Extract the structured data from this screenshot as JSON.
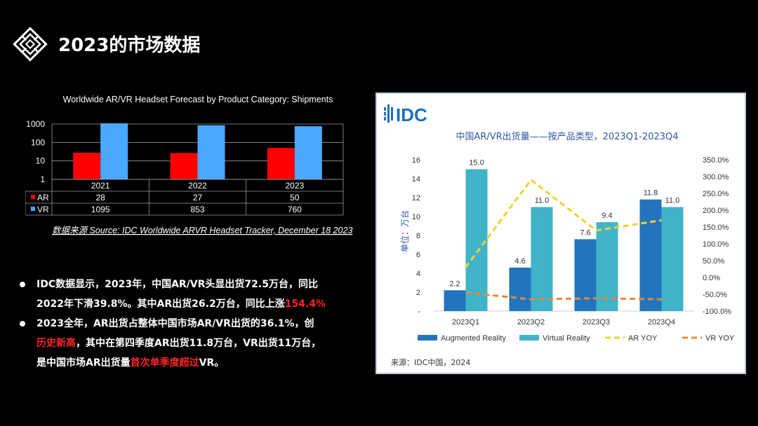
{
  "header": {
    "title": "2023的市场数据"
  },
  "left_chart": {
    "title": "Worldwide AR/VR Headset Forecast by Product Category: Shipments",
    "source": "数据来源 Source: IDC Worldwide ARVR Headset Tracker, December 18 2023"
  },
  "right_chart": {
    "brand": "IDC",
    "title": "中国AR/VR出货量——按产品类型，2023Q1-2023Q4",
    "ylabel": "单位：万台",
    "source": "来源：IDC中国，2024"
  },
  "bullets": {
    "b1_l1": "IDC数据显示，2023年，中国AR/VR头显出货72.5万台，同比",
    "b1_l2": "2022年下滑39.8%。其中AR出货26.2万台，同比上涨",
    "b1_l2_red": "154.4%",
    "b2_l1": "2023全年，AR出货占整体中国市场AR/VR出货的36.1%，创",
    "b2_l2_red": "历史新高",
    "b2_l2": "，其中在第四季度AR出货11.8万台，VR出货11万台，",
    "b2_l3": "是中国市场AR出货量",
    "b2_l3_red": "首次单季度超过",
    "b2_l3_end": "VR。"
  },
  "colors": {
    "background": "#000000",
    "left_ar": "#ff0000",
    "left_vr": "#4aa8ff",
    "ar_bar": "#2275bd",
    "vr_bar": "#3fb4c8",
    "ar_yoy": "#f2d02f",
    "vr_yoy": "#e8873a",
    "highlight_red": "#ff2424"
  },
  "chart_data": [
    {
      "type": "bar",
      "title": "Worldwide AR/VR Headset Forecast by Product Category: Shipments",
      "categories": [
        "2021",
        "2022",
        "2023"
      ],
      "series": [
        {
          "name": "AR",
          "values": [
            28,
            27,
            50
          ]
        },
        {
          "name": "VR",
          "values": [
            1095,
            853,
            760
          ]
        }
      ],
      "y_scale": "log",
      "yticks": [
        "1",
        "10",
        "100",
        "1000"
      ],
      "ylim": [
        1,
        1000
      ],
      "grid": true,
      "legend": "data table"
    },
    {
      "type": "bar",
      "title": "中国AR/VR出货量——按产品类型，2023Q1-2023Q4",
      "categories": [
        "2023Q1",
        "2023Q2",
        "2023Q3",
        "2023Q4"
      ],
      "series": [
        {
          "name": "Augmented Reality",
          "type": "bar",
          "values": [
            2.2,
            4.6,
            7.6,
            11.8
          ]
        },
        {
          "name": "Virtual Reality",
          "type": "bar",
          "values": [
            15.0,
            11.0,
            9.4,
            11.0
          ]
        },
        {
          "name": "AR YOY",
          "type": "line",
          "axis": "right",
          "values": [
            30,
            290,
            140,
            170
          ]
        },
        {
          "name": "VR YOY",
          "type": "line",
          "axis": "right",
          "values": [
            -45,
            -65,
            -62,
            -65
          ]
        }
      ],
      "ylabel": "单位：万台",
      "ylim": [
        0,
        16
      ],
      "yticks": [
        "-",
        "2",
        "4",
        "6",
        "8",
        "10",
        "12",
        "14",
        "16"
      ],
      "y2lim": [
        -100,
        350
      ],
      "y2ticks": [
        "-100.0%",
        "-50.0%",
        "0.0%",
        "50.0%",
        "100.0%",
        "150.0%",
        "200.0%",
        "250.0%",
        "300.0%",
        "350.0%"
      ],
      "grid": false,
      "legend": "bottom"
    }
  ]
}
